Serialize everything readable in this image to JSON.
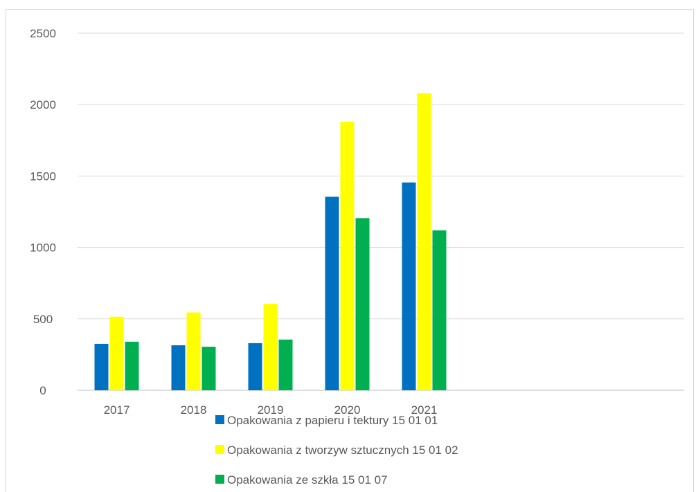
{
  "chart_data": {
    "type": "bar",
    "title": "",
    "xlabel": "",
    "ylabel": "",
    "categories": [
      "2017",
      "2018",
      "2019",
      "2020",
      "2021"
    ],
    "ylim": [
      0,
      2500
    ],
    "yticks": [
      0,
      500,
      1000,
      1500,
      2000,
      2500
    ],
    "grid": true,
    "legend_position": "bottom",
    "series": [
      {
        "name": "Opakowania z papieru i tektury 15 01 01",
        "color": "#0070c0",
        "values": [
          325,
          315,
          330,
          1355,
          1455
        ]
      },
      {
        "name": "Opakowania z tworzyw sztucznych 15 01 02",
        "color": "#ffff00",
        "values": [
          515,
          545,
          605,
          1880,
          2080
        ]
      },
      {
        "name": "Opakowania ze szkła 15 01 07",
        "color": "#00b050",
        "values": [
          340,
          305,
          355,
          1205,
          1120
        ]
      }
    ]
  }
}
